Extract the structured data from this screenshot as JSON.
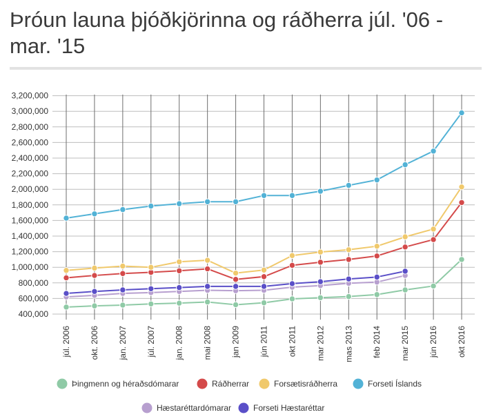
{
  "title": "Þróun launa þjóðkjörinna og ráðherra júl. '06 - mar. '15",
  "chart_data": {
    "type": "line",
    "title": "Þróun launa þjóðkjörinna og ráðherra júl. '06 - mar. '15",
    "xlabel": "",
    "ylabel": "",
    "ylim": [
      400000,
      3200000
    ],
    "yticks": [
      400000,
      600000,
      800000,
      1000000,
      1200000,
      1400000,
      1600000,
      1800000,
      2000000,
      2200000,
      2400000,
      2600000,
      2800000,
      3000000,
      3200000
    ],
    "ytick_labels": [
      "400,000",
      "600,000",
      "800,000",
      "1,000,000",
      "1,200,000",
      "1,400,000",
      "1,600,000",
      "1,800,000",
      "2,000,000",
      "2,200,000",
      "2,400,000",
      "2,600,000",
      "2,800,000",
      "3,000,000",
      "3,200,000"
    ],
    "categories": [
      "júl. 2006",
      "okt. 2006",
      "jan. 2007",
      "júl. 2007",
      "jan. 2008",
      "mai 2008",
      "jan 2009",
      "jún 2011",
      "okt 2011",
      "mar 2012",
      "mas 2013",
      "feb 2014",
      "mar 2015",
      "jún 2016",
      "okt 2016"
    ],
    "grid": true,
    "legend_position": "bottom",
    "series": [
      {
        "name": "Þingmenn og héraðsdómarar",
        "color": "#8fcaa6",
        "values": [
          490000,
          505000,
          515000,
          530000,
          540000,
          555000,
          520000,
          545000,
          595000,
          610000,
          625000,
          650000,
          710000,
          760000,
          1100000
        ]
      },
      {
        "name": "Ráðherrar",
        "color": "#d44a4a",
        "values": [
          865000,
          895000,
          920000,
          935000,
          955000,
          980000,
          845000,
          880000,
          1025000,
          1065000,
          1100000,
          1145000,
          1260000,
          1355000,
          1830000
        ]
      },
      {
        "name": "Forsætisráðherra",
        "color": "#f0c96c",
        "values": [
          960000,
          990000,
          1015000,
          1000000,
          1070000,
          1090000,
          925000,
          965000,
          1150000,
          1195000,
          1225000,
          1270000,
          1390000,
          1490000,
          2030000
        ]
      },
      {
        "name": "Forseti Íslands",
        "color": "#52b2d6",
        "values": [
          1630000,
          1685000,
          1740000,
          1785000,
          1815000,
          1840000,
          1840000,
          1920000,
          1920000,
          1975000,
          2050000,
          2120000,
          2315000,
          2490000,
          2980000
        ]
      },
      {
        "name": "Hæstaréttardómarar",
        "color": "#b79fcf",
        "values": [
          620000,
          640000,
          665000,
          675000,
          690000,
          705000,
          700000,
          705000,
          745000,
          765000,
          795000,
          810000,
          895000,
          null,
          null
        ]
      },
      {
        "name": "Forseti Hæstaréttar",
        "color": "#5a4fc8",
        "values": [
          665000,
          690000,
          710000,
          725000,
          740000,
          755000,
          755000,
          755000,
          790000,
          815000,
          850000,
          875000,
          950000,
          null,
          null
        ]
      }
    ]
  }
}
